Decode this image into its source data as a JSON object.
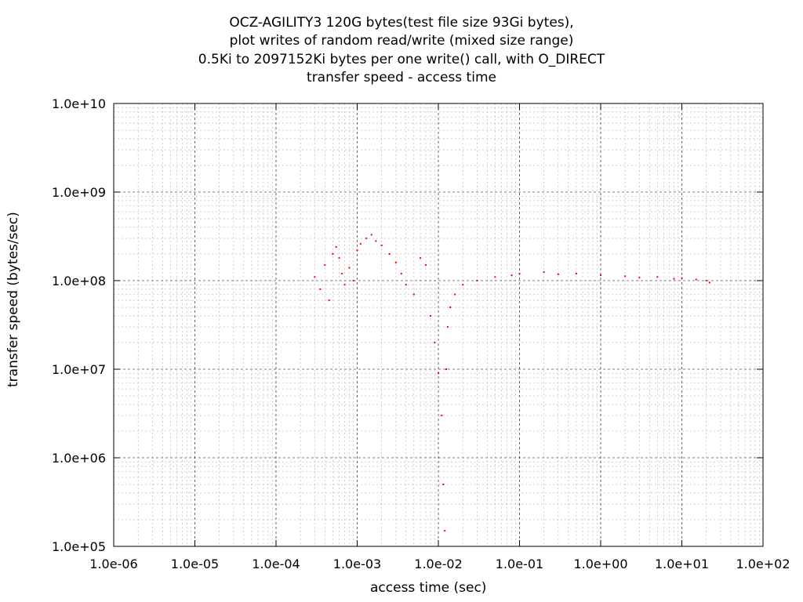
{
  "chart_data": {
    "type": "scatter",
    "title": [
      "OCZ-AGILITY3 120G bytes(test file size 93Gi bytes),",
      "plot writes of random read/write (mixed size range)",
      "0.5Ki to 2097152Ki bytes per one write() call, with O_DIRECT",
      "transfer speed - access time"
    ],
    "xlabel": "access time (sec)",
    "ylabel": "transfer speed (bytes/sec)",
    "x_scale": "log",
    "y_scale": "log",
    "xlim": [
      1e-06,
      100
    ],
    "ylim": [
      100000,
      10000000000
    ],
    "x_ticks": [
      "1.0e-06",
      "1.0e-05",
      "1.0e-04",
      "1.0e-03",
      "1.0e-02",
      "1.0e-01",
      "1.0e+00",
      "1.0e+01",
      "1.0e+02"
    ],
    "y_ticks": [
      "1.0e+05",
      "1.0e+06",
      "1.0e+07",
      "1.0e+08",
      "1.0e+09",
      "1.0e+10"
    ],
    "grid": true,
    "point_color": "#ff0000",
    "series": [
      {
        "points": [
          [
            0.0003,
            110000000
          ],
          [
            0.00035,
            80000000
          ],
          [
            0.0004,
            150000000
          ],
          [
            0.00045,
            60000000
          ],
          [
            0.0005,
            200000000
          ],
          [
            0.00055,
            240000000
          ],
          [
            0.0006,
            180000000
          ],
          [
            0.00065,
            120000000
          ],
          [
            0.0007,
            90000000
          ],
          [
            0.0008,
            140000000
          ],
          [
            0.0009,
            100000000
          ],
          [
            0.001,
            220000000
          ],
          [
            0.0011,
            260000000
          ],
          [
            0.0013,
            300000000
          ],
          [
            0.0015,
            330000000
          ],
          [
            0.0017,
            280000000
          ],
          [
            0.002,
            250000000
          ],
          [
            0.0025,
            200000000
          ],
          [
            0.003,
            160000000
          ],
          [
            0.0035,
            120000000
          ],
          [
            0.004,
            90000000
          ],
          [
            0.005,
            70000000
          ],
          [
            0.006,
            180000000
          ],
          [
            0.007,
            150000000
          ],
          [
            0.008,
            40000000
          ],
          [
            0.009,
            20000000
          ],
          [
            0.01,
            9000000
          ],
          [
            0.011,
            3000000
          ],
          [
            0.0115,
            500000
          ],
          [
            0.012,
            150000
          ],
          [
            0.0125,
            10000000
          ],
          [
            0.013,
            30000000
          ],
          [
            0.014,
            50000000
          ],
          [
            0.016,
            70000000
          ],
          [
            0.02,
            90000000
          ],
          [
            0.03,
            100000000
          ],
          [
            0.05,
            110000000
          ],
          [
            0.08,
            115000000
          ],
          [
            0.1,
            120000000
          ],
          [
            0.2,
            125000000
          ],
          [
            0.3,
            118000000
          ],
          [
            0.5,
            120000000
          ],
          [
            1,
            115000000
          ],
          [
            2,
            112000000
          ],
          [
            3,
            108000000
          ],
          [
            5,
            110000000
          ],
          [
            8,
            105000000
          ],
          [
            10,
            107000000
          ],
          [
            15,
            103000000
          ],
          [
            20,
            100000000
          ],
          [
            22,
            95000000
          ]
        ]
      }
    ]
  }
}
